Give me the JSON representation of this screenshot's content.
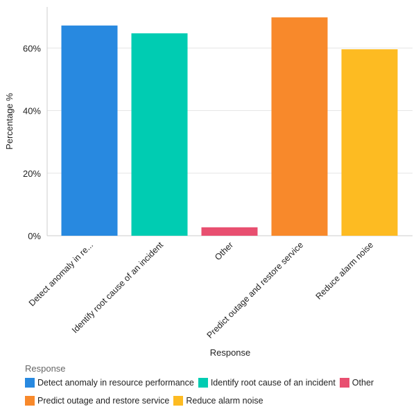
{
  "chart_data": {
    "type": "bar",
    "title": "",
    "xlabel": "Response",
    "ylabel": "Percentage %",
    "ylim": [
      0,
      73
    ],
    "yticks": [
      0,
      20,
      40,
      60
    ],
    "ytick_labels": [
      "0%",
      "20%",
      "40%",
      "60%"
    ],
    "grid": true,
    "categories": [
      "Detect anomaly in re...",
      "Identify root cause of an incident",
      "Other",
      "Predict outage and restore service",
      "Reduce alarm noise"
    ],
    "values": [
      67.2,
      64.7,
      2.7,
      69.8,
      59.6
    ],
    "colors": [
      "#2889e0",
      "#00ccb2",
      "#e84f70",
      "#f8892b",
      "#fdbb22"
    ],
    "legend": {
      "title": "Response",
      "placement": "bottom",
      "entries": [
        "Detect anomaly in resource performance",
        "Identify root cause of an incident",
        "Other",
        "Predict outage and restore service",
        "Reduce alarm noise"
      ]
    }
  }
}
